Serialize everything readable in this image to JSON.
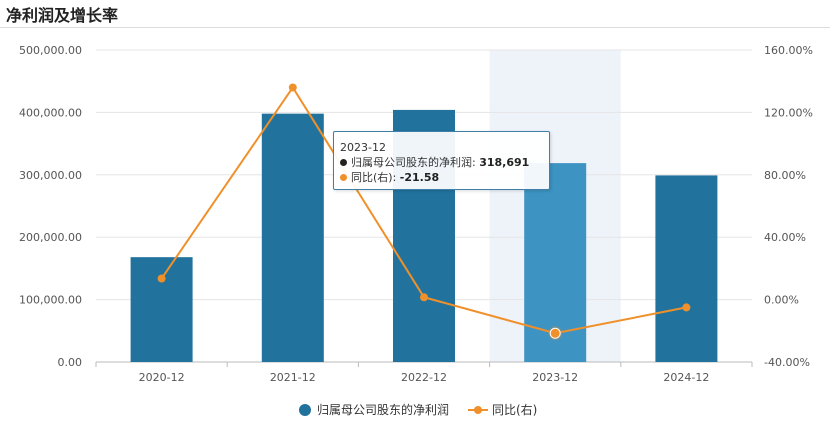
{
  "title": "净利润及增长率",
  "chart_data": {
    "type": "bar",
    "categories": [
      "2020-12",
      "2021-12",
      "2022-12",
      "2023-12",
      "2024-12"
    ],
    "series": [
      {
        "name": "归属母公司股东的净利润",
        "type": "bar",
        "axis": "left",
        "values": [
          168000,
          398000,
          404000,
          318691,
          299000
        ]
      },
      {
        "name": "同比(右)",
        "type": "line",
        "axis": "right",
        "values": [
          13.5,
          136.0,
          1.5,
          -21.58,
          -5.0
        ]
      }
    ],
    "y_left": {
      "ylim": [
        0,
        500000
      ],
      "ticks": [
        "0.00",
        "100,000.00",
        "200,000.00",
        "300,000.00",
        "400,000.00",
        "500,000.00"
      ]
    },
    "y_right": {
      "ylim": [
        -40,
        160
      ],
      "ticks": [
        "-40.00%",
        "0.00%",
        "40.00%",
        "80.00%",
        "120.00%",
        "160.00%"
      ]
    },
    "grid": true,
    "legend": "bottom-center",
    "highlight_category": "2023-12",
    "colors": {
      "bar": "#21739e",
      "bar_highlight": "#3d93c2",
      "line": "#f0902a",
      "highlight_band": "#eef3fa",
      "grid": "#e5e5e5"
    }
  },
  "tooltip": {
    "category": "2023-12",
    "rows": [
      {
        "label": "归属母公司股东的净利润: ",
        "value": "318,691",
        "color": "#222222"
      },
      {
        "label": "同比(右): ",
        "value": "-21.58",
        "color": "#f0902a"
      }
    ]
  }
}
